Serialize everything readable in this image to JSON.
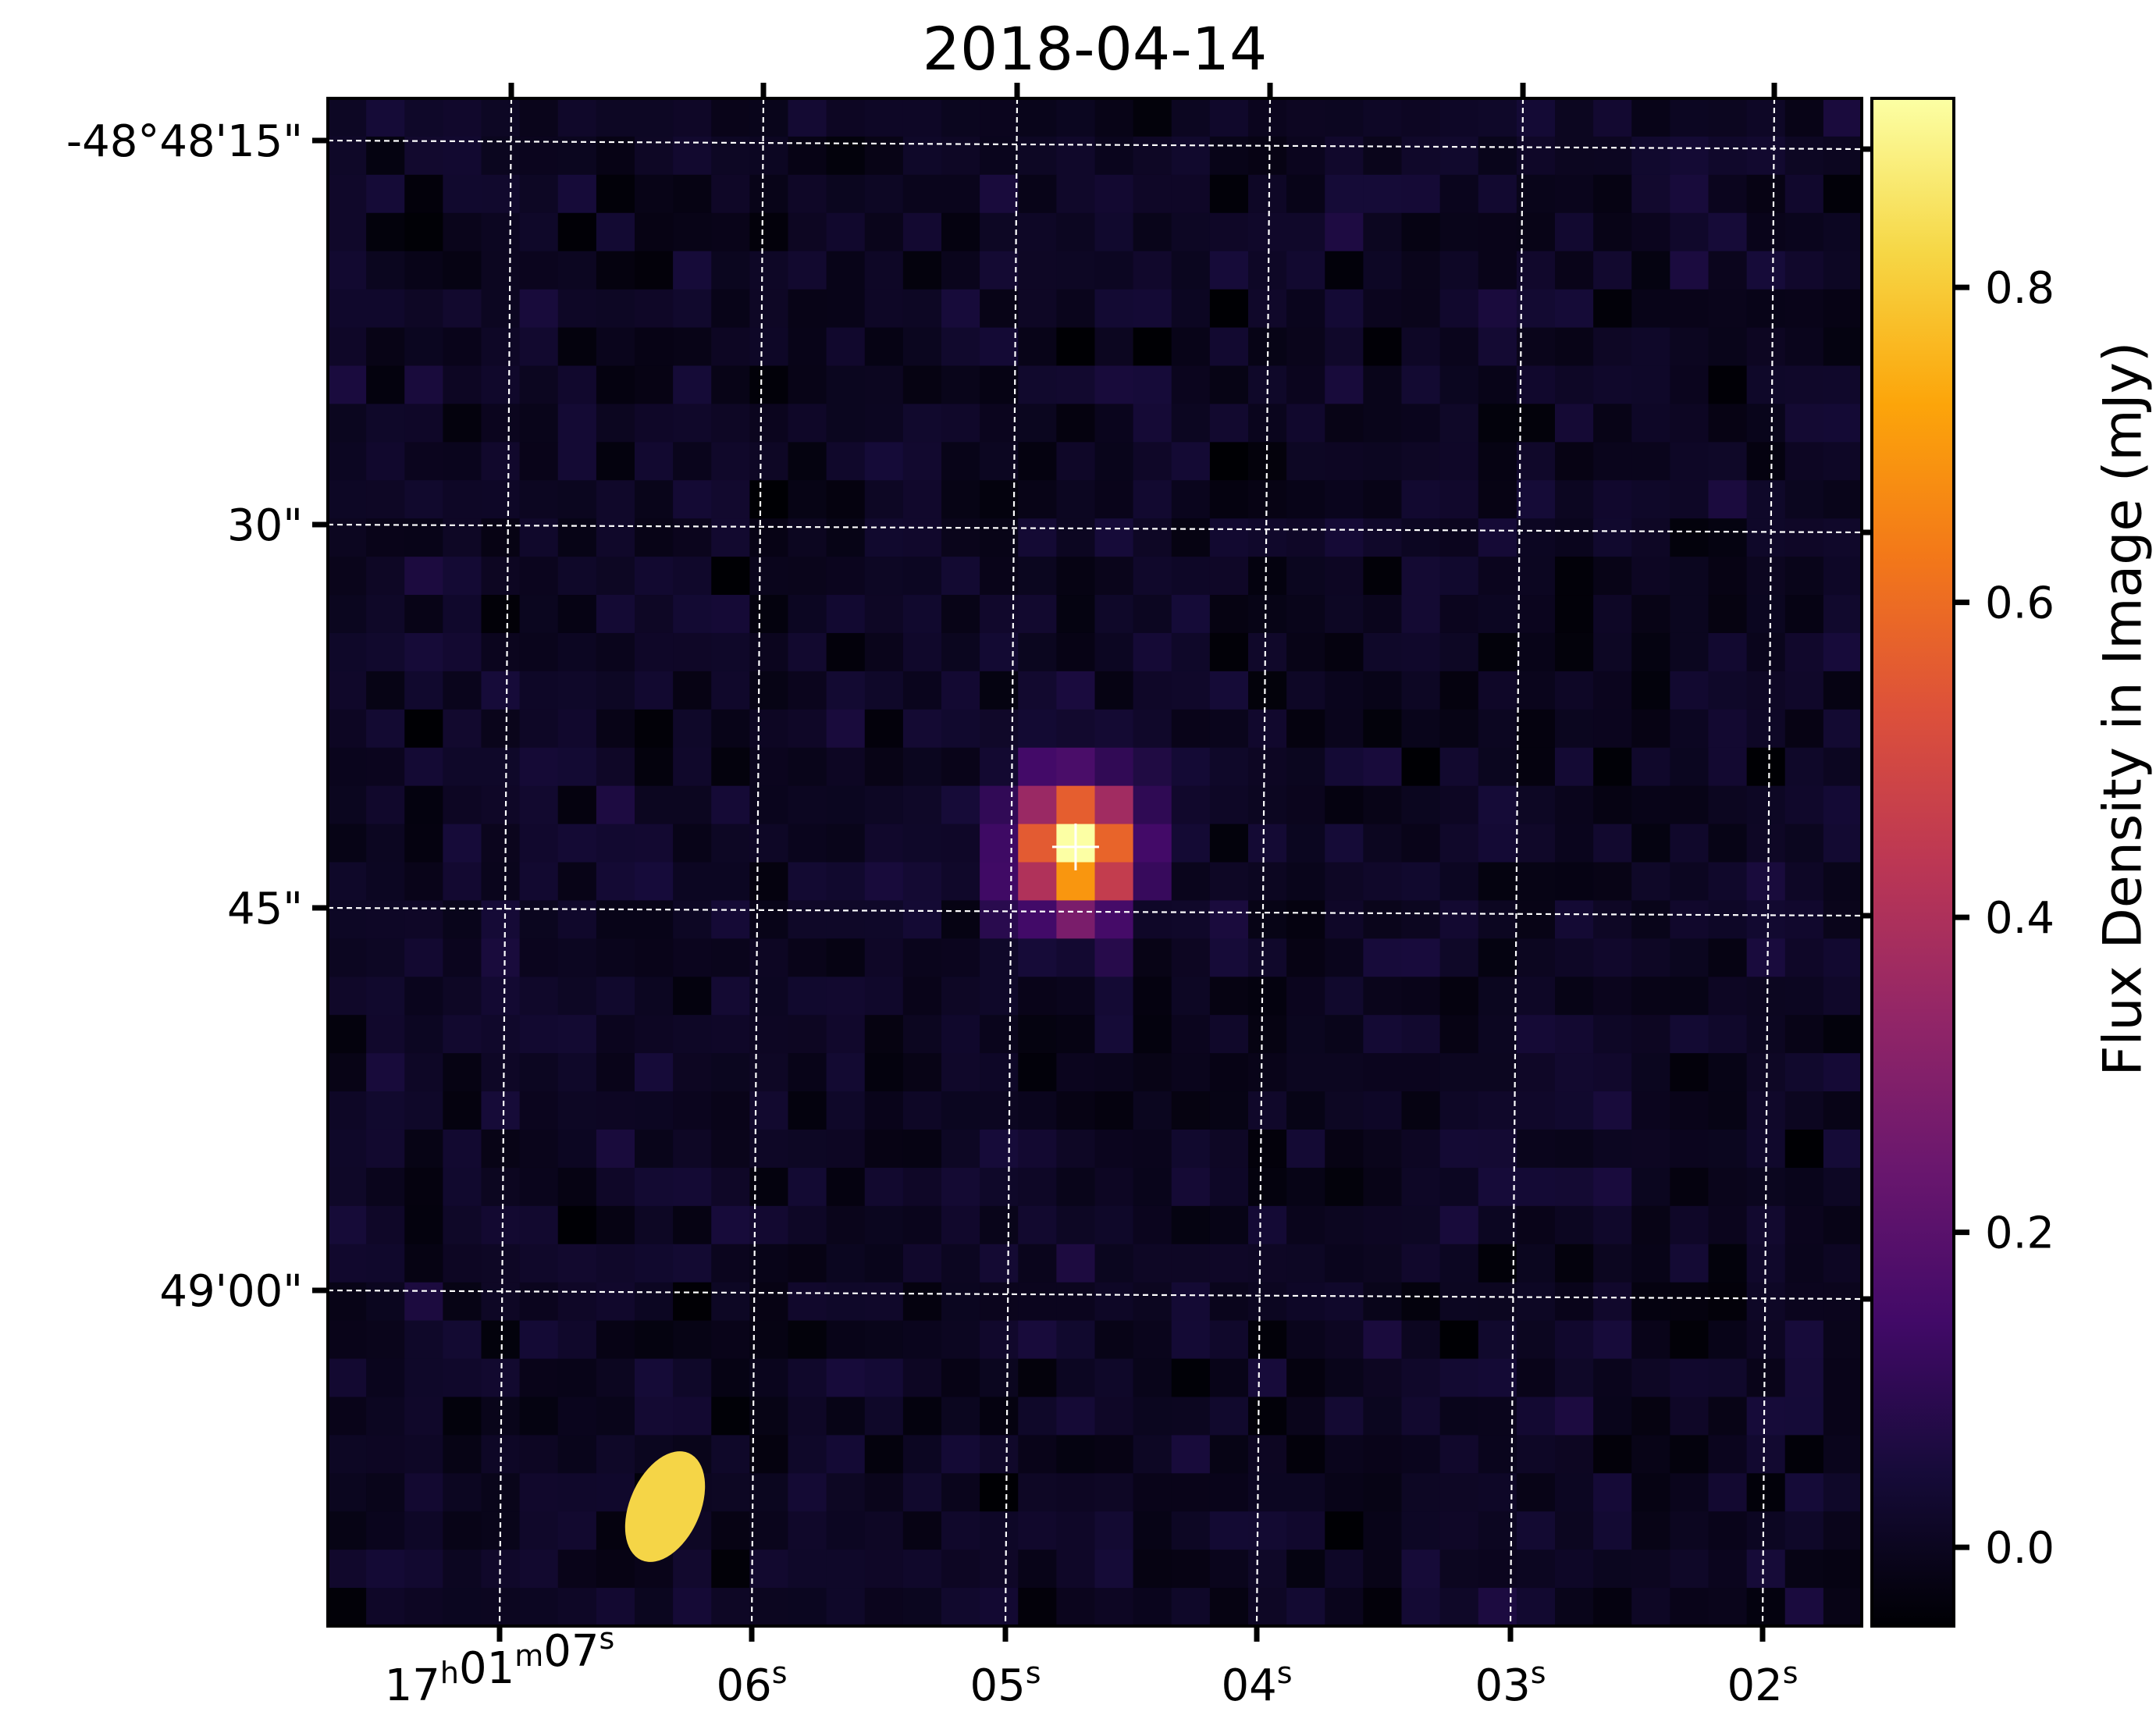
{
  "chart_data": {
    "type": "heatmap",
    "title": "2018-04-14",
    "xlabel": "",
    "ylabel": "",
    "colormap": "inferno",
    "x_axis": {
      "coordinate": "Right Ascension",
      "ticks": [
        {
          "h": "17",
          "m": "01",
          "s": "07"
        },
        {
          "s": "06"
        },
        {
          "s": "05"
        },
        {
          "s": "04"
        },
        {
          "s": "03"
        },
        {
          "s": "02"
        }
      ]
    },
    "y_axis": {
      "coordinate": "Declination",
      "ticks": [
        "-48°48'15\"",
        "30\"",
        "45\"",
        "49'00\""
      ]
    },
    "colorbar": {
      "label": "Flux Density in Image (mJy)",
      "ticks": [
        "0.0",
        "0.2",
        "0.4",
        "0.6",
        "0.8"
      ],
      "tick_values": [
        0.0,
        0.2,
        0.4,
        0.6,
        0.8
      ],
      "range": [
        -0.05,
        0.92
      ]
    },
    "grid": "dashed white",
    "source": {
      "peak_mJy": 0.9,
      "ra_s": 4.72,
      "marker": "white cross"
    },
    "beam": {
      "color": "#f5d547",
      "shape": "ellipse"
    },
    "pixel_grid": {
      "cols": 40,
      "rows": 40
    }
  },
  "colors": {
    "background": "#000004",
    "grid": "#ffffff",
    "beam": "#f5d547"
  }
}
